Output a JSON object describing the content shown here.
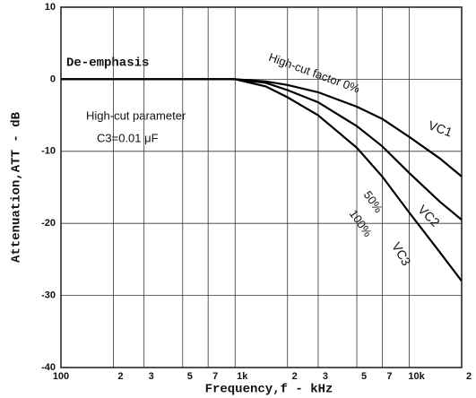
{
  "chart_data": {
    "type": "line",
    "x_label": "Frequency,f - kHz",
    "y_label": "Attenuation,ATT - dB",
    "x": [
      100,
      200,
      500,
      1000,
      1500,
      2000,
      3000,
      5000,
      7000,
      10000,
      15000,
      20000
    ],
    "series": [
      {
        "name": "VC1",
        "color": "#000000",
        "values": [
          0,
          0,
          0,
          0,
          -0.3,
          -0.8,
          -1.8,
          -3.8,
          -5.5,
          -8,
          -11,
          -13.5
        ]
      },
      {
        "name": "VC2",
        "color": "#000000",
        "values": [
          0,
          0,
          0,
          0,
          -0.5,
          -1.5,
          -3.2,
          -6.5,
          -9.3,
          -13,
          -17,
          -19.5
        ]
      },
      {
        "name": "VC3",
        "color": "#000000",
        "values": [
          0,
          0,
          0,
          0,
          -1,
          -2.5,
          -5,
          -9.5,
          -13.5,
          -18.5,
          -24,
          -28
        ]
      }
    ],
    "annotations": [
      "De-emphasis",
      "High-cut parameter",
      "C3=0.01 μF",
      "High-cut factor 0%",
      "50%",
      "100%"
    ],
    "xscale": "log",
    "xlim": [
      100,
      20000
    ],
    "xticks": [
      100,
      {
        "value": 200,
        "label": "2"
      },
      {
        "value": 300,
        "label": "3"
      },
      {
        "value": 500,
        "label": "5"
      },
      {
        "value": 700,
        "label": "7"
      },
      {
        "value": 1000,
        "label": "1k"
      },
      {
        "value": 2000,
        "label": "2"
      },
      {
        "value": 3000,
        "label": "3"
      },
      {
        "value": 5000,
        "label": "5"
      },
      {
        "value": 7000,
        "label": "7"
      },
      {
        "value": 10000,
        "label": "10k"
      },
      {
        "value": 20000,
        "label": "2"
      }
    ],
    "ylim": [
      -40,
      10
    ],
    "yticks": [
      10,
      0,
      -10,
      -20,
      -30,
      -40
    ],
    "grid": true
  }
}
